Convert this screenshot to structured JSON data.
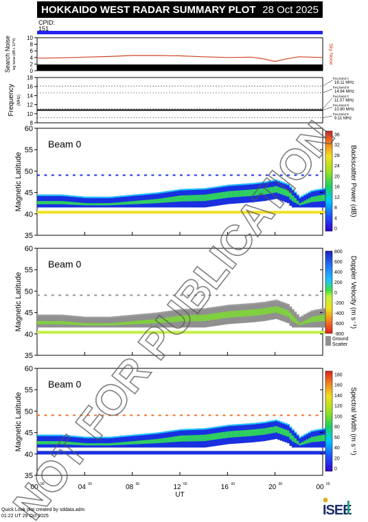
{
  "header": {
    "title": "HOKKAIDO WEST RADAR SUMMARY PLOT",
    "date": "28 Oct 2025"
  },
  "cpid": {
    "label": "CPID:",
    "value": "151"
  },
  "watermark": "NOT FOR PUBLICATION",
  "noise_panel": {
    "ylabel": "Search Noise",
    "ylabel_sub": "log noise (dB x 10^4)",
    "right_label": "Sky Noise",
    "ylim": [
      0,
      10
    ],
    "ticks": [
      "0",
      "2",
      "4",
      "6",
      "8",
      "10"
    ]
  },
  "freq_panel": {
    "ylabel": "Frequency",
    "ylabel_unit": "(MHz)",
    "ylim": [
      8,
      18
    ],
    "ticks": [
      "8",
      "10",
      "12",
      "14",
      "16",
      "18"
    ],
    "bands": [
      {
        "name": "freq band A",
        "value": "16.11 MHz"
      },
      {
        "name": "freq band B",
        "value": "14.64 MHz"
      },
      {
        "name": "freq band C",
        "value": "11.07 MHz"
      },
      {
        "name": "freq band D",
        "value": "10.80 MHz"
      },
      {
        "name": "freq band E",
        "value": "9.11 MHz"
      }
    ]
  },
  "range_panels": [
    {
      "beam": "Beam  0",
      "ylabel": "Magnetic Latitude",
      "cbar_label": "Backscatter Power (dB)",
      "cbar_ticks": [
        "0",
        "4",
        "8",
        "12",
        "16",
        "20",
        "24",
        "28",
        "32",
        "36"
      ],
      "ground_scatter": ""
    },
    {
      "beam": "Beam  0",
      "ylabel": "Magnetic Latitude",
      "cbar_label": "Doppler Velocity (m s⁻¹)",
      "cbar_ticks": [
        "-800",
        "-600",
        "-400",
        "-200",
        "0",
        "200",
        "400",
        "600",
        "800"
      ],
      "ground_scatter": "Ground Scatter"
    },
    {
      "beam": "Beam  0",
      "ylabel": "Magnetic Latitude",
      "cbar_label": "Spectral Width (m s⁻¹)",
      "cbar_ticks": [
        "0",
        "20",
        "40",
        "60",
        "80",
        "100",
        "120",
        "140",
        "160",
        "180"
      ],
      "ground_scatter": ""
    }
  ],
  "lat_ticks": [
    "35",
    "40",
    "45",
    "50",
    "55",
    "60"
  ],
  "x_axis": {
    "label": "UT",
    "ticks": [
      "00",
      "04",
      "08",
      "12",
      "16",
      "20",
      "00"
    ],
    "tick_sup": "00"
  },
  "credit": {
    "line1": "Quick Look plot created by sddata.adm",
    "line2": "01:22 UT 29 Oct 2025"
  },
  "logo_text": "ISEE",
  "chart_data": [
    {
      "type": "line",
      "title": "Search Noise",
      "x_label": "UT",
      "xlim": [
        0,
        24
      ],
      "ylim": [
        0,
        10
      ],
      "series": [
        {
          "name": "Sky Noise",
          "x": [
            0,
            2,
            4,
            6,
            8,
            10,
            12,
            14,
            16,
            18,
            19,
            20,
            21,
            22,
            24
          ],
          "y": [
            3.8,
            3.9,
            4.1,
            4.3,
            4.6,
            4.6,
            4.5,
            4.2,
            4.0,
            4.1,
            3.6,
            2.8,
            3.6,
            4.2,
            4.0
          ]
        }
      ]
    },
    {
      "type": "line",
      "title": "Frequency",
      "xlim": [
        0,
        24
      ],
      "ylim": [
        8,
        18
      ],
      "series": [
        {
          "name": "",
          "x": [
            0,
            24
          ],
          "y": [
            10.8,
            10.8
          ]
        }
      ]
    },
    {
      "type": "heatmap",
      "title": "Backscatter Power (dB)",
      "xlim": [
        0,
        24
      ],
      "ylim": [
        35,
        60
      ],
      "zlim": [
        0,
        36
      ],
      "bands": [
        {
          "x": [
            0,
            2,
            4,
            6,
            8,
            10,
            12,
            14,
            16,
            18,
            19,
            20,
            21,
            22,
            23,
            24
          ],
          "y": [
            44.5,
            44.5,
            44.0,
            44.0,
            44.5,
            45.0,
            45.8,
            46.0,
            46.8,
            47.2,
            47.5,
            48.0,
            47.0,
            44.0,
            45.5,
            46.0
          ],
          "z": 18
        }
      ]
    },
    {
      "type": "heatmap",
      "title": "Doppler Velocity (m s⁻¹)",
      "xlim": [
        0,
        24
      ],
      "ylim": [
        35,
        60
      ],
      "zlim": [
        -800,
        800
      ],
      "bands": []
    },
    {
      "type": "heatmap",
      "title": "Spectral Width (m s⁻¹)",
      "xlim": [
        0,
        24
      ],
      "ylim": [
        35,
        60
      ],
      "zlim": [
        0,
        180
      ],
      "bands": []
    }
  ]
}
